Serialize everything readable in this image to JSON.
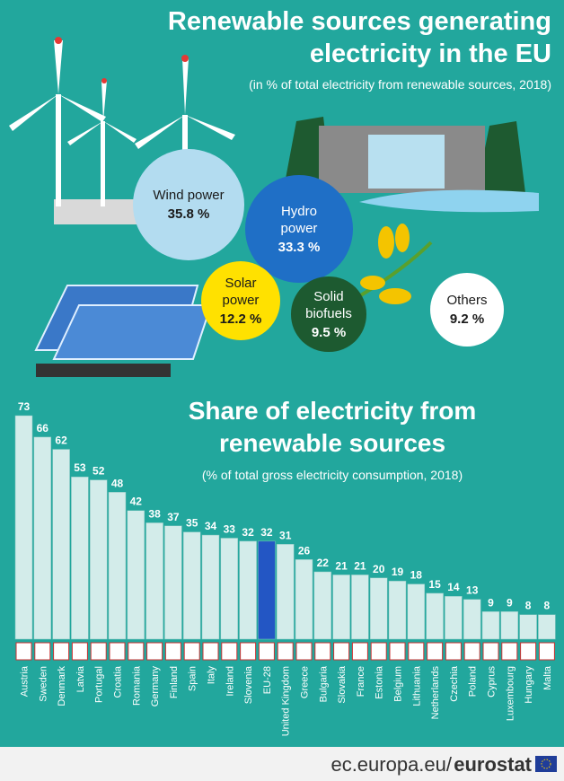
{
  "chart_data": [
    {
      "type": "bubble",
      "title": "Renewable sources generating electricity in the EU",
      "subtitle": "(in % of total electricity from renewable sources, 2018)",
      "categories": [
        "Wind power",
        "Hydro power",
        "Solar power",
        "Solid biofuels",
        "Others"
      ],
      "values": [
        35.8,
        33.3,
        12.2,
        9.5,
        9.2
      ],
      "value_labels": [
        "35.8 %",
        "33.3 %",
        "12.2 %",
        "9.5 %",
        "9.2 %"
      ],
      "colors": [
        "#b3dcf0",
        "#1f6fc6",
        "#ffe100",
        "#1d5a30",
        "#ffffff"
      ],
      "text_colors": [
        "#1a1a1a",
        "#ffffff",
        "#1a1a1a",
        "#ffffff",
        "#1a1a1a"
      ]
    },
    {
      "type": "bar",
      "title": "Share of electricity from renewable sources",
      "subtitle": "(% of total gross electricity consumption, 2018)",
      "categories": [
        "Austria",
        "Sweden",
        "Denmark",
        "Latvia",
        "Portugal",
        "Croatia",
        "Romania",
        "Germany",
        "Finland",
        "Spain",
        "Italy",
        "Ireland",
        "Slovenia",
        "EU-28",
        "United Kingdom",
        "Greece",
        "Bulgaria",
        "Slovakia",
        "France",
        "Estonia",
        "Belgium",
        "Lithuania",
        "Netherlands",
        "Czechia",
        "Poland",
        "Cyprus",
        "Luxembourg",
        "Hungary",
        "Malta"
      ],
      "values": [
        73,
        66,
        62,
        53,
        52,
        48,
        42,
        38,
        37,
        35,
        34,
        33,
        32,
        32,
        31,
        26,
        22,
        21,
        21,
        20,
        19,
        18,
        15,
        14,
        13,
        9,
        9,
        8,
        8
      ],
      "colors": [
        "#d3ecea",
        "#d3ecea",
        "#d3ecea",
        "#d3ecea",
        "#d3ecea",
        "#d3ecea",
        "#d3ecea",
        "#d3ecea",
        "#d3ecea",
        "#d3ecea",
        "#d3ecea",
        "#d3ecea",
        "#d3ecea",
        "#2356c4",
        "#d3ecea",
        "#d3ecea",
        "#d3ecea",
        "#d3ecea",
        "#d3ecea",
        "#d3ecea",
        "#d3ecea",
        "#d3ecea",
        "#d3ecea",
        "#d3ecea",
        "#d3ecea",
        "#d3ecea",
        "#d3ecea",
        "#d3ecea",
        "#d3ecea"
      ]
    }
  ],
  "footer": {
    "site": "ec.europa.eu/",
    "brand": "eurostat"
  }
}
